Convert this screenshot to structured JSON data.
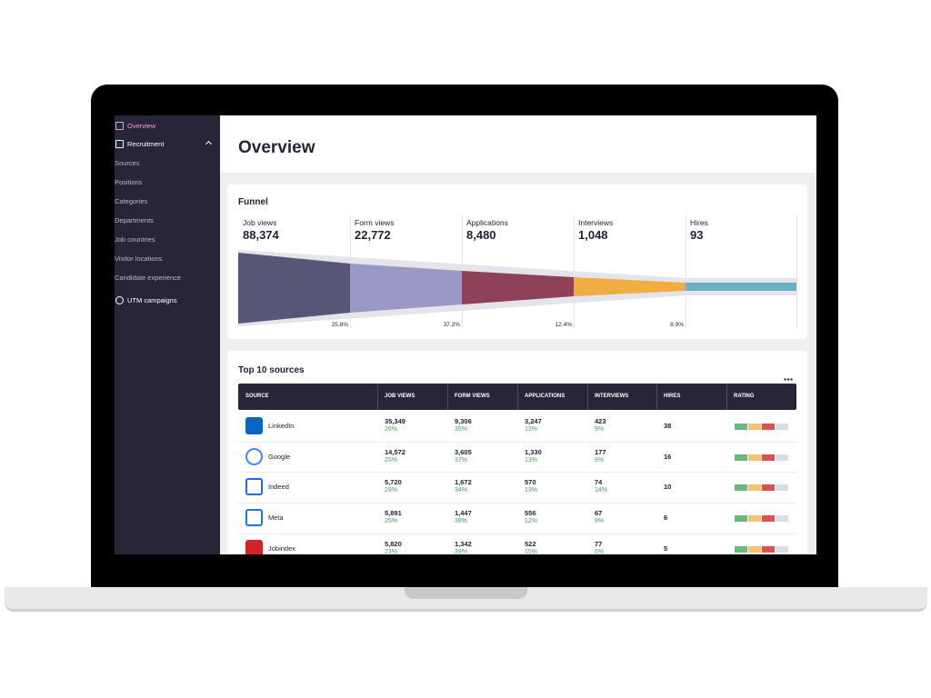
{
  "sidebar": {
    "items": [
      "Overview",
      "Recruitment",
      "Sources",
      "Positions",
      "Categories",
      "Departments",
      "Job countries",
      "Visitor locations",
      "Candidate experience",
      "UTM campaigns"
    ]
  },
  "header": {
    "title": "Overview"
  },
  "funnel": {
    "title": "Funnel",
    "stages": [
      {
        "label": "Job views",
        "value": "88,374"
      },
      {
        "label": "Form views",
        "value": "22,772"
      },
      {
        "label": "Applications",
        "value": "8,480"
      },
      {
        "label": "Interviews",
        "value": "1,048"
      },
      {
        "label": "Hires",
        "value": "93"
      }
    ],
    "conversions": [
      "25.8%",
      "37.2%",
      "12.4%",
      "8.9%"
    ]
  },
  "sources": {
    "title": "Top 10 sources",
    "columns": [
      "SOURCE",
      "JOB VIEWS",
      "FORM VIEWS",
      "APPLICATIONS",
      "INTERVIEWS",
      "HIRES",
      "RATING"
    ],
    "rows": [
      {
        "source": "LinkedIn",
        "cells": [
          {
            "value": "35,349",
            "share": "26%"
          },
          {
            "value": "9,306",
            "share": "35%"
          },
          {
            "value": "3,247",
            "share": "13%"
          },
          {
            "value": "423",
            "share": "9%"
          }
        ],
        "hires": "38"
      },
      {
        "source": "Google",
        "cells": [
          {
            "value": "14,572",
            "share": "25%"
          },
          {
            "value": "3,605",
            "share": "37%"
          },
          {
            "value": "1,330",
            "share": "13%"
          },
          {
            "value": "177",
            "share": "9%"
          }
        ],
        "hires": "16"
      },
      {
        "source": "Indeed",
        "cells": [
          {
            "value": "5,720",
            "share": "29%"
          },
          {
            "value": "1,672",
            "share": "34%"
          },
          {
            "value": "570",
            "share": "13%"
          },
          {
            "value": "74",
            "share": "14%"
          }
        ],
        "hires": "10"
      },
      {
        "source": "Meta",
        "cells": [
          {
            "value": "5,891",
            "share": "25%"
          },
          {
            "value": "1,447",
            "share": "38%"
          },
          {
            "value": "556",
            "share": "12%"
          },
          {
            "value": "67",
            "share": "9%"
          }
        ],
        "hires": "6"
      },
      {
        "source": "Jobindex",
        "cells": [
          {
            "value": "5,820",
            "share": "23%"
          },
          {
            "value": "1,342",
            "share": "39%"
          },
          {
            "value": "522",
            "share": "15%"
          },
          {
            "value": "77",
            "share": "6%"
          }
        ],
        "hires": "5"
      }
    ]
  }
}
